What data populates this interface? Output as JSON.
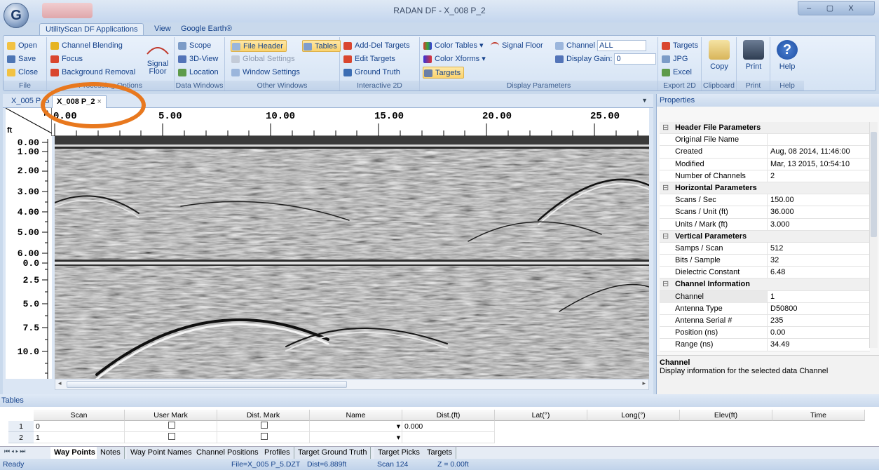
{
  "app": {
    "title": "RADAN DF - X_008 P_2",
    "logo": "G",
    "window_buttons": [
      "–",
      "▢",
      "X"
    ]
  },
  "ribbon_tabs": [
    "UtilityScan DF Applications",
    "View",
    "Google Earth®"
  ],
  "file_group": {
    "label": "File",
    "items": [
      "Open",
      "Save",
      "Close"
    ]
  },
  "processing": {
    "label": "Processing Options",
    "items": [
      "Channel Blending",
      "Focus",
      "Background Removal"
    ],
    "big": "Signal Floor"
  },
  "data_windows": {
    "label": "Data Windows",
    "items": [
      "Scope",
      "3D-View",
      "Location"
    ]
  },
  "other_windows": {
    "label": "Other Windows",
    "items": [
      "File Header",
      "Global Settings",
      "Window Settings"
    ],
    "tables": "Tables"
  },
  "interactive": {
    "label": "Interactive 2D",
    "items": [
      "Add-Del Targets",
      "Edit Targets",
      "Ground Truth"
    ]
  },
  "display": {
    "label": "Display Parameters",
    "color_tables": "Color Tables",
    "color_xforms": "Color Xforms",
    "targets": "Targets",
    "signal_floor": "Signal Floor",
    "channel_label": "Channel",
    "channel_value": "ALL",
    "gain_label": "Display Gain:",
    "gain_value": "0"
  },
  "export2d": {
    "label": "Export 2D",
    "items": [
      "Targets",
      "JPG",
      "Excel"
    ]
  },
  "clipboard": {
    "label": "Clipboard",
    "copy": "Copy"
  },
  "print": {
    "label": "Print",
    "print": "Print"
  },
  "help": {
    "label": "Help",
    "help": "Help"
  },
  "doc_tabs": [
    "X_005 P_5",
    "X_008 P_2"
  ],
  "ruler": {
    "unit": "ft",
    "ticks": [
      "0.00",
      "5.00",
      "10.00",
      "15.00",
      "20.00",
      "25.00"
    ]
  },
  "vaxis": {
    "unit": "ft",
    "top_ticks": [
      "0.00",
      "1.00",
      "2.00",
      "3.00",
      "4.00",
      "5.00",
      "6.00"
    ],
    "bottom_ticks": [
      "0.0",
      "2.5",
      "5.0",
      "7.5",
      "10.0"
    ]
  },
  "properties": {
    "title": "Properties",
    "rows": [
      {
        "cat": true,
        "k": "Header File Parameters"
      },
      {
        "k": "Original File Name",
        "v": ""
      },
      {
        "k": "Created",
        "v": "Aug, 08 2014, 11:46:00"
      },
      {
        "k": "Modified",
        "v": "Mar, 13 2015, 10:54:10"
      },
      {
        "k": "Number of Channels",
        "v": "2"
      },
      {
        "cat": true,
        "k": "Horizontal Parameters"
      },
      {
        "k": "Scans / Sec",
        "v": "150.00"
      },
      {
        "k": "Scans / Unit (ft)",
        "v": "36.000"
      },
      {
        "k": "Units / Mark (ft)",
        "v": "3.000"
      },
      {
        "cat": true,
        "k": "Vertical Parameters"
      },
      {
        "k": "Samps / Scan",
        "v": "512"
      },
      {
        "k": "Bits / Sample",
        "v": "32"
      },
      {
        "k": "Dielectric Constant",
        "v": "6.48"
      },
      {
        "cat": true,
        "k": "Channel Information"
      },
      {
        "k": "Channel",
        "v": "1"
      },
      {
        "k": "Antenna Type",
        "v": "D50800"
      },
      {
        "k": "Antenna Serial #",
        "v": "235"
      },
      {
        "k": "Position (ns)",
        "v": "0.00"
      },
      {
        "k": "Range (ns)",
        "v": "34.49"
      }
    ],
    "desc_title": "Channel",
    "desc_text": "Display information for the selected data Channel"
  },
  "tables": {
    "title": "Tables",
    "columns": [
      "Scan",
      "User Mark",
      "Dist. Mark",
      "Name",
      "Dist.(ft)",
      "Lat(°)",
      "Long(°)",
      "Elev(ft)",
      "Time"
    ],
    "rows": [
      {
        "n": "1",
        "scan": "0",
        "dist": "0.000"
      },
      {
        "n": "2",
        "scan": "1",
        "dist": ""
      }
    ],
    "sheets": [
      "Way Points",
      "Notes",
      "Way Point Names",
      "Channel Positions",
      "Profiles",
      "Target Ground Truth",
      "Target Picks",
      "Targets"
    ]
  },
  "status": {
    "ready": "Ready",
    "file": "File=X_005 P_5.DZT",
    "dist": "Dist=6.889ft",
    "scan": "Scan 124",
    "z": "Z = 0.00ft"
  }
}
